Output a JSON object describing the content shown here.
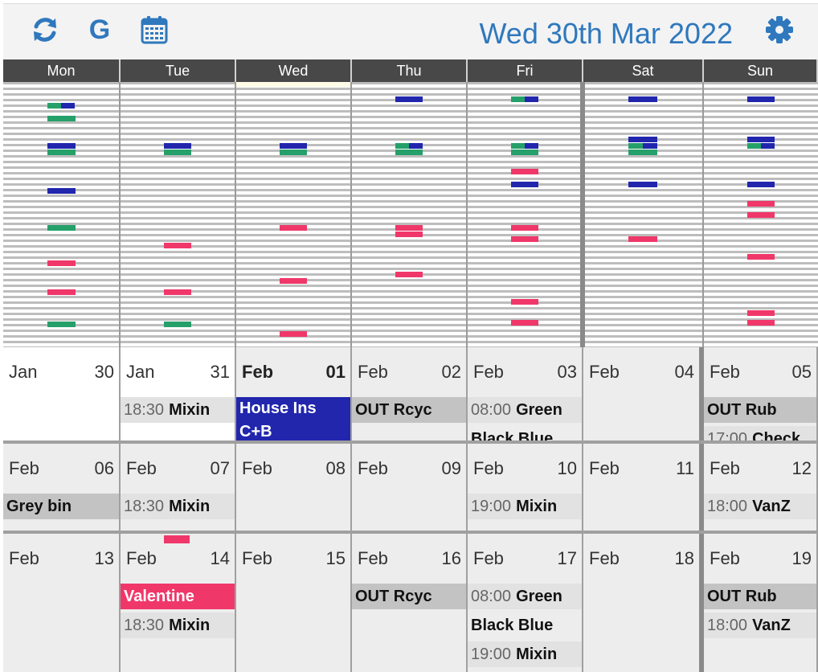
{
  "toolbar": {
    "refresh_icon": "refresh-icon",
    "google_label": "G",
    "calendar_icon": "calendar-icon",
    "date_title": "Wed 30th Mar 2022",
    "settings_icon": "gear-icon",
    "accent_color": "#2f78bd"
  },
  "days": [
    "Mon",
    "Tue",
    "Wed",
    "Thu",
    "Fri",
    "Sat",
    "Sun"
  ],
  "colors": {
    "blue": "#2126ad",
    "green": "#25a06a",
    "pink": "#f0376a",
    "grey_event": "#c3c3c3"
  },
  "weeks": [
    [
      {
        "month": "Jan",
        "day": "30",
        "events": []
      },
      {
        "month": "Jan",
        "day": "31",
        "events": [
          {
            "time": "18:30",
            "title": "Mixin"
          }
        ]
      },
      {
        "month": "Feb",
        "day": "01",
        "events": [
          {
            "title": "House Ins C+B"
          }
        ]
      },
      {
        "month": "Feb",
        "day": "02",
        "events": [
          {
            "title": "OUT Rcyc"
          }
        ]
      },
      {
        "month": "Feb",
        "day": "03",
        "events": [
          {
            "time": "08:00",
            "title": "Green"
          },
          {
            "title": "Black Blue"
          }
        ]
      },
      {
        "month": "Feb",
        "day": "04",
        "events": []
      },
      {
        "month": "Feb",
        "day": "05",
        "events": [
          {
            "title": "OUT Rub"
          },
          {
            "time": "17:00",
            "title": "Check"
          }
        ]
      }
    ],
    [
      {
        "month": "Feb",
        "day": "06",
        "events": [
          {
            "title": "Grey bin"
          }
        ]
      },
      {
        "month": "Feb",
        "day": "07",
        "events": [
          {
            "time": "18:30",
            "title": "Mixin"
          }
        ]
      },
      {
        "month": "Feb",
        "day": "08",
        "events": []
      },
      {
        "month": "Feb",
        "day": "09",
        "events": []
      },
      {
        "month": "Feb",
        "day": "10",
        "events": [
          {
            "time": "19:00",
            "title": "Mixin"
          }
        ]
      },
      {
        "month": "Feb",
        "day": "11",
        "events": []
      },
      {
        "month": "Feb",
        "day": "12",
        "events": [
          {
            "time": "18:00",
            "title": "VanZ"
          }
        ]
      }
    ],
    [
      {
        "month": "Feb",
        "day": "13",
        "events": []
      },
      {
        "month": "Feb",
        "day": "14",
        "events": [
          {
            "title": "Valentine"
          },
          {
            "time": "18:30",
            "title": "Mixin"
          }
        ]
      },
      {
        "month": "Feb",
        "day": "15",
        "events": []
      },
      {
        "month": "Feb",
        "day": "16",
        "events": [
          {
            "title": "OUT Rcyc"
          }
        ]
      },
      {
        "month": "Feb",
        "day": "17",
        "events": [
          {
            "time": "08:00",
            "title": "Green"
          },
          {
            "title": "Black Blue"
          },
          {
            "time": "19:00",
            "title": "Mixin"
          }
        ]
      },
      {
        "month": "Feb",
        "day": "18",
        "events": []
      },
      {
        "month": "Feb",
        "day": "19",
        "events": [
          {
            "title": "OUT Rub"
          },
          {
            "time": "18:00",
            "title": "VanZ"
          }
        ]
      }
    ]
  ]
}
